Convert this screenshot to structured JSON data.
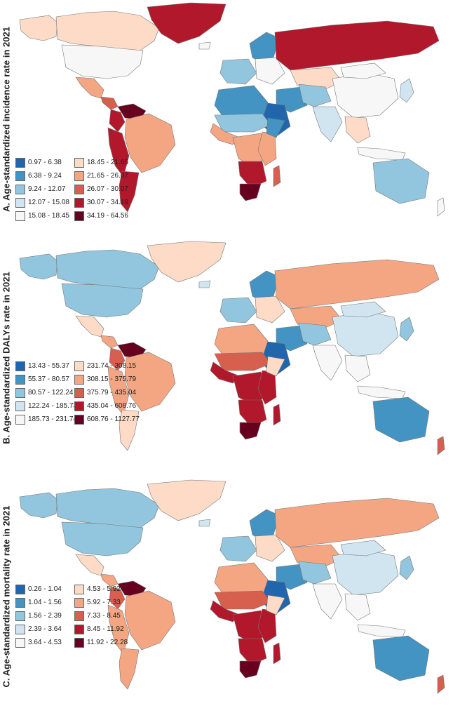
{
  "palette": [
    "#2166ac",
    "#4393c3",
    "#92c5de",
    "#d1e5f0",
    "#f7f7f7",
    "#fddbc7",
    "#f4a582",
    "#d6604d",
    "#b2182b",
    "#67001f"
  ],
  "panels": [
    {
      "title": "A. Age-standardized incidence rate in 2021",
      "legend": [
        {
          "label": "0.97 - 6.38"
        },
        {
          "label": "6.38 - 9.24"
        },
        {
          "label": "9.24 - 12.07"
        },
        {
          "label": "12.07 - 15.08"
        },
        {
          "label": "15.08 - 18.45"
        },
        {
          "label": "18.45 - 21.65"
        },
        {
          "label": "21.65 - 26.07"
        },
        {
          "label": "26.07 - 30.07"
        },
        {
          "label": "30.07 - 34.19"
        },
        {
          "label": "34.19 - 64.56"
        }
      ],
      "regions": {
        "greenland": 8,
        "canada": 5,
        "alaska": 5,
        "usa": 4,
        "mexico": 6,
        "central_america": 7,
        "venezuela": 9,
        "colombia": 8,
        "brazil": 6,
        "andes": 8,
        "argentina": 8,
        "iceland": 4,
        "scandinavia": 1,
        "western_europe": 2,
        "eastern_europe": 4,
        "russia": 8,
        "kazakhstan": 5,
        "iran": 1,
        "arabia": 0,
        "central_asia": 2,
        "india": 3,
        "china": 4,
        "mongolia": 4,
        "southeast_asia": 5,
        "japan": 3,
        "indonesia": 4,
        "north_africa": 1,
        "sahel": 2,
        "west_africa": 6,
        "central_africa": 6,
        "east_africa": 6,
        "horn_africa": 1,
        "southern_africa": 8,
        "south_africa": 9,
        "madagascar": 7,
        "australia": 2,
        "new_zealand": 4
      }
    },
    {
      "title": "B. Age-standardized DALYs rate in 2021",
      "legend": [
        {
          "label": "13.43 - 55.37"
        },
        {
          "label": "55.37 - 80.57"
        },
        {
          "label": "80.57 - 122.24"
        },
        {
          "label": "122.24 - 185.73"
        },
        {
          "label": "185.73 - 231.74"
        },
        {
          "label": "231.74 - 308.15"
        },
        {
          "label": "308.15 - 375.79"
        },
        {
          "label": "375.79 - 435.04"
        },
        {
          "label": "435.04 - 608.76"
        },
        {
          "label": "608.76 - 1127.77"
        }
      ],
      "regions": {
        "greenland": 5,
        "canada": 2,
        "alaska": 2,
        "usa": 2,
        "mexico": 5,
        "central_america": 6,
        "venezuela": 9,
        "colombia": 7,
        "brazil": 6,
        "andes": 6,
        "argentina": 5,
        "iceland": 3,
        "scandinavia": 1,
        "western_europe": 2,
        "eastern_europe": 5,
        "russia": 6,
        "kazakhstan": 6,
        "iran": 1,
        "arabia": 0,
        "central_asia": 2,
        "india": 4,
        "china": 3,
        "mongolia": 3,
        "southeast_asia": 4,
        "japan": 2,
        "indonesia": 4,
        "north_africa": 6,
        "sahel": 7,
        "west_africa": 8,
        "central_africa": 8,
        "east_africa": 8,
        "horn_africa": 5,
        "southern_africa": 8,
        "south_africa": 9,
        "madagascar": 8,
        "australia": 1,
        "new_zealand": 7
      }
    },
    {
      "title": "C. Age-standardized mortality rate in 2021",
      "legend": [
        {
          "label": "0.26 - 1.04"
        },
        {
          "label": "1.04 - 1.56"
        },
        {
          "label": "1.56 - 2.39"
        },
        {
          "label": "2.39 - 3.64"
        },
        {
          "label": "3.64 - 4.53"
        },
        {
          "label": "4.53 - 5.92"
        },
        {
          "label": "5.92 - 7.33"
        },
        {
          "label": "7.33 - 8.45"
        },
        {
          "label": "8.45 - 11.92"
        },
        {
          "label": "11.92 - 22.28"
        }
      ],
      "regions": {
        "greenland": 5,
        "canada": 2,
        "alaska": 2,
        "usa": 2,
        "mexico": 5,
        "central_america": 6,
        "venezuela": 9,
        "colombia": 7,
        "brazil": 6,
        "andes": 6,
        "argentina": 6,
        "iceland": 3,
        "scandinavia": 1,
        "western_europe": 2,
        "eastern_europe": 5,
        "russia": 6,
        "kazakhstan": 6,
        "iran": 1,
        "arabia": 0,
        "central_asia": 2,
        "india": 4,
        "china": 3,
        "mongolia": 3,
        "southeast_asia": 4,
        "japan": 2,
        "indonesia": 4,
        "north_africa": 6,
        "sahel": 7,
        "west_africa": 8,
        "central_africa": 8,
        "east_africa": 8,
        "horn_africa": 5,
        "southern_africa": 8,
        "south_africa": 9,
        "madagascar": 8,
        "australia": 1,
        "new_zealand": 7
      }
    }
  ]
}
